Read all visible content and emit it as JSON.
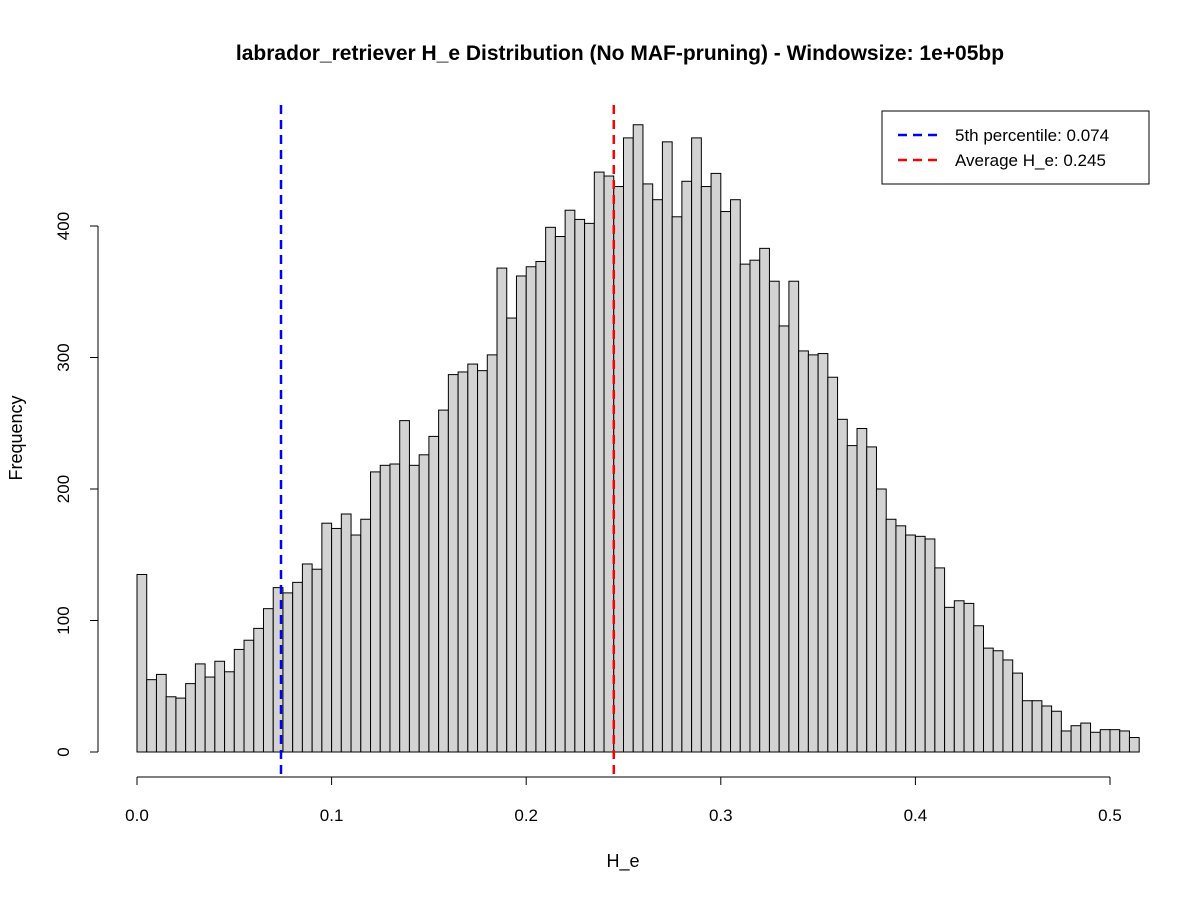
{
  "chart_data": {
    "type": "bar",
    "title": "labrador_retriever H_e Distribution (No MAF-pruning) - Windowsize: 1e+05bp",
    "xlabel": "H_e",
    "ylabel": "Frequency",
    "xlim": [
      0,
      0.5
    ],
    "ylim": [
      0,
      480
    ],
    "bin_width": 0.005,
    "x_ticks": [
      "0.0",
      "0.1",
      "0.2",
      "0.3",
      "0.4",
      "0.5"
    ],
    "y_ticks": [
      "0",
      "100",
      "200",
      "300",
      "400"
    ],
    "bar_color": "#d3d3d3",
    "values": [
      135,
      55,
      59,
      42,
      41,
      52,
      67,
      57,
      69,
      61,
      78,
      85,
      94,
      109,
      125,
      121,
      129,
      143,
      139,
      174,
      170,
      181,
      165,
      177,
      213,
      218,
      219,
      252,
      218,
      226,
      240,
      260,
      287,
      289,
      295,
      290,
      302,
      368,
      330,
      362,
      369,
      373,
      399,
      392,
      412,
      405,
      402,
      441,
      438,
      430,
      467,
      477,
      432,
      420,
      464,
      407,
      434,
      467,
      430,
      440,
      411,
      420,
      371,
      374,
      383,
      358,
      324,
      358,
      305,
      302,
      303,
      285,
      253,
      233,
      246,
      232,
      200,
      177,
      172,
      165,
      164,
      162,
      140,
      110,
      115,
      113,
      96,
      79,
      77,
      70,
      60,
      39,
      39,
      35,
      31,
      16,
      20,
      22,
      15,
      17,
      17,
      16,
      11
    ],
    "reference_lines": [
      {
        "name": "5th percentile",
        "x": 0.074,
        "color": "#0000ff"
      },
      {
        "name": "Average H_e",
        "x": 0.245,
        "color": "#ff0000"
      }
    ],
    "legend": {
      "position": "top-right",
      "entries": [
        {
          "label": "5th percentile:  0.074",
          "color": "#0000ff"
        },
        {
          "label": "Average H_e:  0.245",
          "color": "#ff0000"
        }
      ]
    },
    "grid": false
  }
}
